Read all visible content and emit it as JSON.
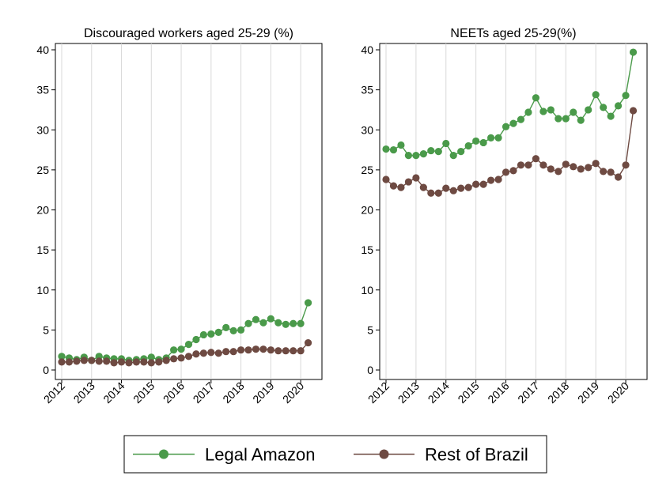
{
  "colors": {
    "legal_amazon": "#4a9a4a",
    "rest_of_brazil": "#6e4a42",
    "grid": "#d9d9d9",
    "axis": "#000000"
  },
  "legend": {
    "items": [
      "Legal Amazon",
      "Rest of Brazil"
    ],
    "position": "bottom"
  },
  "chart_data": [
    {
      "type": "line",
      "title": "Discouraged workers aged 25-29 (%)",
      "xlabel": "",
      "ylabel": "",
      "xlim": [
        2012,
        2020.5
      ],
      "ylim": [
        0,
        40
      ],
      "yticks": [
        0,
        5,
        10,
        15,
        20,
        25,
        30,
        35,
        40
      ],
      "xticks": [
        "2012",
        "2013",
        "2014",
        "2015",
        "2016",
        "2017",
        "2018",
        "2019",
        "2020"
      ],
      "grid": "vertical",
      "x": [
        2012,
        2012.25,
        2012.5,
        2012.75,
        2013,
        2013.25,
        2013.5,
        2013.75,
        2014,
        2014.25,
        2014.5,
        2014.75,
        2015,
        2015.25,
        2015.5,
        2015.75,
        2016,
        2016.25,
        2016.5,
        2016.75,
        2017,
        2017.25,
        2017.5,
        2017.75,
        2018,
        2018.25,
        2018.5,
        2018.75,
        2019,
        2019.25,
        2019.5,
        2019.75,
        2020,
        2020.25
      ],
      "series": [
        {
          "name": "Legal Amazon",
          "values": [
            1.7,
            1.5,
            1.3,
            1.6,
            1.2,
            1.7,
            1.5,
            1.4,
            1.4,
            1.2,
            1.3,
            1.4,
            1.6,
            1.3,
            1.5,
            2.5,
            2.6,
            3.2,
            3.8,
            4.4,
            4.5,
            4.7,
            5.3,
            4.9,
            5.0,
            5.8,
            6.3,
            5.9,
            6.4,
            5.9,
            5.7,
            5.8,
            5.8,
            8.4
          ]
        },
        {
          "name": "Rest of Brazil",
          "values": [
            1.0,
            1.0,
            1.1,
            1.2,
            1.2,
            1.1,
            1.1,
            0.9,
            1.0,
            0.9,
            1.0,
            1.0,
            0.9,
            1.0,
            1.2,
            1.4,
            1.5,
            1.7,
            2.0,
            2.1,
            2.2,
            2.1,
            2.3,
            2.3,
            2.5,
            2.5,
            2.6,
            2.6,
            2.5,
            2.4,
            2.4,
            2.4,
            2.4,
            3.4
          ]
        }
      ]
    },
    {
      "type": "line",
      "title": "NEETs aged 25-29(%)",
      "xlabel": "",
      "ylabel": "",
      "xlim": [
        2012,
        2020.5
      ],
      "ylim": [
        0,
        40
      ],
      "yticks": [
        0,
        5,
        10,
        15,
        20,
        25,
        30,
        35,
        40
      ],
      "xticks": [
        "2012",
        "2013",
        "2014",
        "2015",
        "2016",
        "2017",
        "2018",
        "2019",
        "2020"
      ],
      "grid": "vertical",
      "x": [
        2012,
        2012.25,
        2012.5,
        2012.75,
        2013,
        2013.25,
        2013.5,
        2013.75,
        2014,
        2014.25,
        2014.5,
        2014.75,
        2015,
        2015.25,
        2015.5,
        2015.75,
        2016,
        2016.25,
        2016.5,
        2016.75,
        2017,
        2017.25,
        2017.5,
        2017.75,
        2018,
        2018.25,
        2018.5,
        2018.75,
        2019,
        2019.25,
        2019.5,
        2019.75,
        2020,
        2020.25
      ],
      "series": [
        {
          "name": "Legal Amazon",
          "values": [
            27.6,
            27.5,
            28.1,
            26.8,
            26.8,
            27.0,
            27.4,
            27.3,
            28.3,
            26.8,
            27.3,
            28.0,
            28.6,
            28.4,
            29.0,
            29.0,
            30.4,
            30.8,
            31.3,
            32.2,
            34.0,
            32.3,
            32.5,
            31.4,
            31.4,
            32.2,
            31.2,
            32.5,
            34.4,
            32.8,
            31.7,
            33.0,
            34.3,
            39.7
          ]
        },
        {
          "name": "Rest of Brazil",
          "values": [
            23.8,
            23.0,
            22.8,
            23.5,
            24.0,
            22.8,
            22.1,
            22.1,
            22.7,
            22.4,
            22.7,
            22.8,
            23.2,
            23.2,
            23.7,
            23.8,
            24.7,
            24.9,
            25.6,
            25.6,
            26.4,
            25.6,
            25.1,
            24.8,
            25.7,
            25.4,
            25.1,
            25.3,
            25.8,
            24.8,
            24.7,
            24.1,
            25.6,
            32.4
          ]
        }
      ]
    }
  ]
}
